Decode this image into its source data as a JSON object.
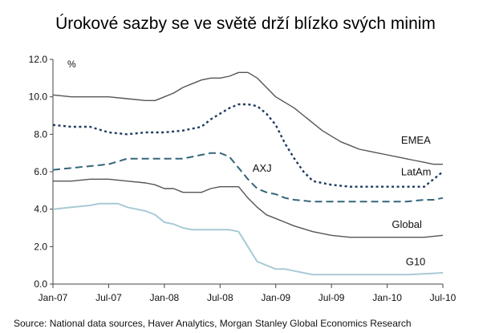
{
  "title": "Úrokové sazby se ve světě drží blízko svých minim",
  "source": "Source: National data sources, Haver Analytics, Morgan Stanley Global Economics Research",
  "chart_data": {
    "type": "line",
    "unit_label": "%",
    "ylim": [
      0,
      12
    ],
    "yticks": [
      "0.0",
      "2.0",
      "4.0",
      "6.0",
      "8.0",
      "10.0",
      "12.0"
    ],
    "xlim": [
      0,
      42
    ],
    "xticks": [
      {
        "x": 0,
        "label": "Jan-07"
      },
      {
        "x": 6,
        "label": "Jul-07"
      },
      {
        "x": 12,
        "label": "Jan-08"
      },
      {
        "x": 18,
        "label": "Jul-08"
      },
      {
        "x": 24,
        "label": "Jan-09"
      },
      {
        "x": 30,
        "label": "Jul-09"
      },
      {
        "x": 36,
        "label": "Jan-10"
      },
      {
        "x": 42,
        "label": "Jul-10"
      }
    ],
    "grid": false,
    "series": [
      {
        "name": "EMEA",
        "color": "#555555",
        "style": "solid",
        "width": 1.4,
        "label_at": [
          37.5,
          7.5
        ],
        "x": [
          0,
          2,
          4,
          6,
          8,
          10,
          11,
          12,
          13,
          14,
          15,
          16,
          17,
          18,
          19,
          20,
          21,
          22,
          23,
          24,
          25,
          26,
          27,
          28,
          29,
          30,
          31,
          32,
          33,
          34,
          35,
          36,
          37,
          38,
          39,
          40,
          41,
          42
        ],
        "values": [
          10.1,
          10.0,
          10.0,
          10.0,
          9.9,
          9.8,
          9.8,
          10.0,
          10.2,
          10.5,
          10.7,
          10.9,
          11.0,
          11.0,
          11.1,
          11.3,
          11.3,
          11.0,
          10.5,
          10.0,
          9.7,
          9.4,
          9.0,
          8.6,
          8.2,
          7.9,
          7.6,
          7.4,
          7.2,
          7.1,
          7.0,
          6.9,
          6.8,
          6.7,
          6.6,
          6.5,
          6.4,
          6.4
        ]
      },
      {
        "name": "LatAm",
        "color": "#1f3a5f",
        "style": "dotted",
        "width": 2.4,
        "label_at": [
          37.5,
          5.8
        ],
        "x": [
          0,
          2,
          4,
          6,
          8,
          10,
          12,
          14,
          16,
          17,
          18,
          19,
          20,
          21,
          22,
          23,
          24,
          25,
          26,
          27,
          28,
          30,
          32,
          34,
          36,
          38,
          40,
          41,
          42
        ],
        "values": [
          8.5,
          8.4,
          8.4,
          8.1,
          8.0,
          8.1,
          8.1,
          8.2,
          8.4,
          8.8,
          9.1,
          9.4,
          9.6,
          9.6,
          9.5,
          9.1,
          8.5,
          7.5,
          6.7,
          6.0,
          5.5,
          5.3,
          5.2,
          5.2,
          5.2,
          5.2,
          5.2,
          5.6,
          6.0
        ]
      },
      {
        "name": "AXJ",
        "color": "#34657a",
        "style": "dashed",
        "width": 2.0,
        "label_at": [
          21.5,
          6.0
        ],
        "x": [
          0,
          2,
          4,
          6,
          8,
          10,
          12,
          14,
          16,
          17,
          18,
          19,
          20,
          21,
          22,
          23,
          24,
          25,
          26,
          28,
          30,
          32,
          34,
          36,
          38,
          40,
          41,
          42
        ],
        "values": [
          6.1,
          6.2,
          6.3,
          6.4,
          6.7,
          6.7,
          6.7,
          6.7,
          6.9,
          7.0,
          7.0,
          6.8,
          6.2,
          5.6,
          5.1,
          4.9,
          4.8,
          4.6,
          4.5,
          4.4,
          4.4,
          4.4,
          4.4,
          4.4,
          4.4,
          4.5,
          4.5,
          4.6
        ]
      },
      {
        "name": "Global",
        "color": "#555555",
        "style": "solid",
        "width": 1.4,
        "label_at": [
          36.5,
          3.0
        ],
        "x": [
          0,
          2,
          4,
          6,
          8,
          10,
          11,
          12,
          13,
          14,
          16,
          17,
          18,
          19,
          20,
          21,
          22,
          23,
          24,
          25,
          26,
          28,
          30,
          32,
          34,
          36,
          38,
          40,
          42
        ],
        "values": [
          5.5,
          5.5,
          5.6,
          5.6,
          5.5,
          5.4,
          5.3,
          5.1,
          5.1,
          4.9,
          4.9,
          5.1,
          5.2,
          5.2,
          5.2,
          4.6,
          4.1,
          3.7,
          3.5,
          3.3,
          3.1,
          2.8,
          2.6,
          2.5,
          2.5,
          2.5,
          2.5,
          2.5,
          2.6
        ]
      },
      {
        "name": "G10",
        "color": "#a8cad6",
        "style": "solid",
        "width": 2.0,
        "label_at": [
          38.0,
          1.0
        ],
        "x": [
          0,
          2,
          4,
          5,
          6,
          7,
          8,
          10,
          11,
          12,
          13,
          14,
          15,
          16,
          17,
          18,
          19,
          20,
          21,
          22,
          23,
          24,
          25,
          26,
          27,
          28,
          30,
          32,
          34,
          36,
          38,
          40,
          42
        ],
        "values": [
          4.0,
          4.1,
          4.2,
          4.3,
          4.3,
          4.3,
          4.1,
          3.9,
          3.7,
          3.3,
          3.2,
          3.0,
          2.9,
          2.9,
          2.9,
          2.9,
          2.9,
          2.8,
          2.0,
          1.2,
          1.0,
          0.8,
          0.8,
          0.7,
          0.6,
          0.5,
          0.5,
          0.5,
          0.5,
          0.5,
          0.5,
          0.55,
          0.6
        ]
      }
    ]
  }
}
